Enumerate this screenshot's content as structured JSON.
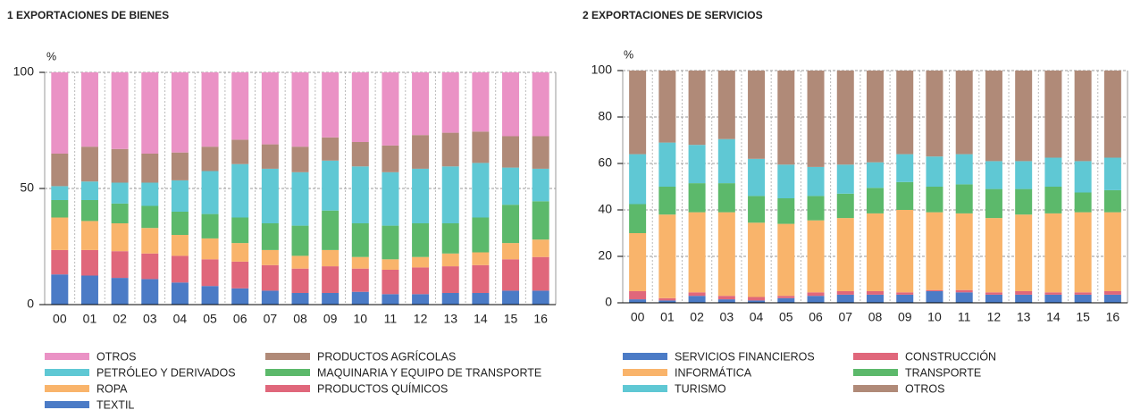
{
  "chart_data": [
    {
      "type": "bar",
      "stacked": true,
      "title": "1  EXPORTACIONES DE BIENES",
      "ylabel": "%",
      "categories": [
        "00",
        "01",
        "02",
        "03",
        "04",
        "05",
        "06",
        "07",
        "08",
        "09",
        "10",
        "11",
        "12",
        "13",
        "14",
        "15",
        "16"
      ],
      "ylim": [
        0,
        100
      ],
      "yticks": [
        0,
        50,
        100
      ],
      "grid": true,
      "legend_reversed": true,
      "series": [
        {
          "name": "TEXTIL",
          "color": "#4b7bc6",
          "values": [
            13,
            12.5,
            11.5,
            11,
            9.5,
            8,
            7,
            6,
            5,
            5,
            5.5,
            4.5,
            4.5,
            5,
            5,
            6,
            6
          ]
        },
        {
          "name": "PRODUCTOS QUÍMICOS",
          "color": "#e0677b",
          "values": [
            10.5,
            11,
            11.5,
            11,
            11.5,
            11.5,
            11.5,
            11,
            10.5,
            11.5,
            10,
            10.5,
            11.5,
            11.5,
            12,
            13.5,
            14.5
          ]
        },
        {
          "name": "ROPA",
          "color": "#f9b46b",
          "values": [
            14,
            12.5,
            12,
            11,
            9,
            9,
            8,
            6.5,
            5.5,
            7,
            5,
            4.5,
            4.5,
            5.5,
            5.5,
            7,
            7.5
          ]
        },
        {
          "name": "MAQUINARIA Y EQUIPO DE TRANSPORTE",
          "color": "#5cb96b",
          "values": [
            7.5,
            9,
            8.5,
            9.5,
            10,
            10.5,
            11,
            11.5,
            13,
            17,
            14.5,
            14.5,
            14.5,
            13,
            15,
            16.5,
            16.5
          ]
        },
        {
          "name": "PETRÓLEO Y DERIVADOS",
          "color": "#5fc8d4",
          "values": [
            6,
            8,
            9,
            10,
            13.5,
            18.5,
            23,
            23.5,
            23,
            21.5,
            24.5,
            23,
            23.5,
            24.5,
            23.5,
            16,
            14
          ]
        },
        {
          "name": "PRODUCTOS AGRÍCOLAS",
          "color": "#b08a78",
          "values": [
            14,
            15,
            14.5,
            12.5,
            12,
            10.5,
            10.5,
            10.5,
            11,
            10,
            10.5,
            11.5,
            14.5,
            14.5,
            13.5,
            13.5,
            14
          ]
        },
        {
          "name": "OTROS",
          "color": "#ea92c5",
          "values": [
            35,
            32,
            33,
            35,
            34.5,
            32,
            29,
            31,
            32,
            28,
            30,
            31.5,
            27,
            26,
            25.5,
            27.5,
            27.5
          ]
        }
      ]
    },
    {
      "type": "bar",
      "stacked": true,
      "title": "2  EXPORTACIONES DE SERVICIOS",
      "ylabel": "%",
      "categories": [
        "00",
        "01",
        "02",
        "03",
        "04",
        "05",
        "06",
        "07",
        "08",
        "09",
        "10",
        "11",
        "12",
        "13",
        "14",
        "15",
        "16"
      ],
      "ylim": [
        0,
        100
      ],
      "yticks": [
        0,
        20,
        40,
        60,
        80,
        100
      ],
      "grid": true,
      "legend_reversed": false,
      "series": [
        {
          "name": "SERVICIOS FINANCIEROS",
          "color": "#4b7bc6",
          "values": [
            1.5,
            1,
            3,
            1.5,
            1,
            2,
            3,
            3.5,
            3.5,
            3.5,
            5,
            4.5,
            3.5,
            3.5,
            3.5,
            3.5,
            3.5
          ]
        },
        {
          "name": "CONSTRUCCIÓN",
          "color": "#e0677b",
          "values": [
            3.5,
            1,
            1.5,
            1.5,
            1.5,
            1,
            1.5,
            1.5,
            1.5,
            1,
            0.5,
            1,
            1,
            1.5,
            1,
            1,
            1.5
          ]
        },
        {
          "name": "INFORMÁTICA",
          "color": "#f9b46b",
          "values": [
            25,
            36,
            34.5,
            36,
            32,
            31,
            31,
            31.5,
            33.5,
            35.5,
            33.5,
            33,
            32,
            33,
            34,
            34.5,
            34
          ]
        },
        {
          "name": "TRANSPORTE",
          "color": "#5cb96b",
          "values": [
            12.5,
            12,
            12.5,
            12.5,
            11.5,
            11,
            10.5,
            10.5,
            11,
            12,
            11,
            12.5,
            12.5,
            11,
            11.5,
            8.5,
            9.5
          ]
        },
        {
          "name": "TURISMO",
          "color": "#5fc8d4",
          "values": [
            21.5,
            19,
            16.5,
            19,
            16,
            14.5,
            12.5,
            12.5,
            11,
            12,
            13,
            13,
            12,
            12,
            12.5,
            13.5,
            14
          ]
        },
        {
          "name": "OTROS",
          "color": "#b08a78",
          "values": [
            36,
            31,
            32,
            29.5,
            38,
            40.5,
            41.5,
            40.5,
            39.5,
            36,
            37,
            36,
            39,
            39,
            37.5,
            39,
            37.5
          ]
        }
      ]
    }
  ]
}
